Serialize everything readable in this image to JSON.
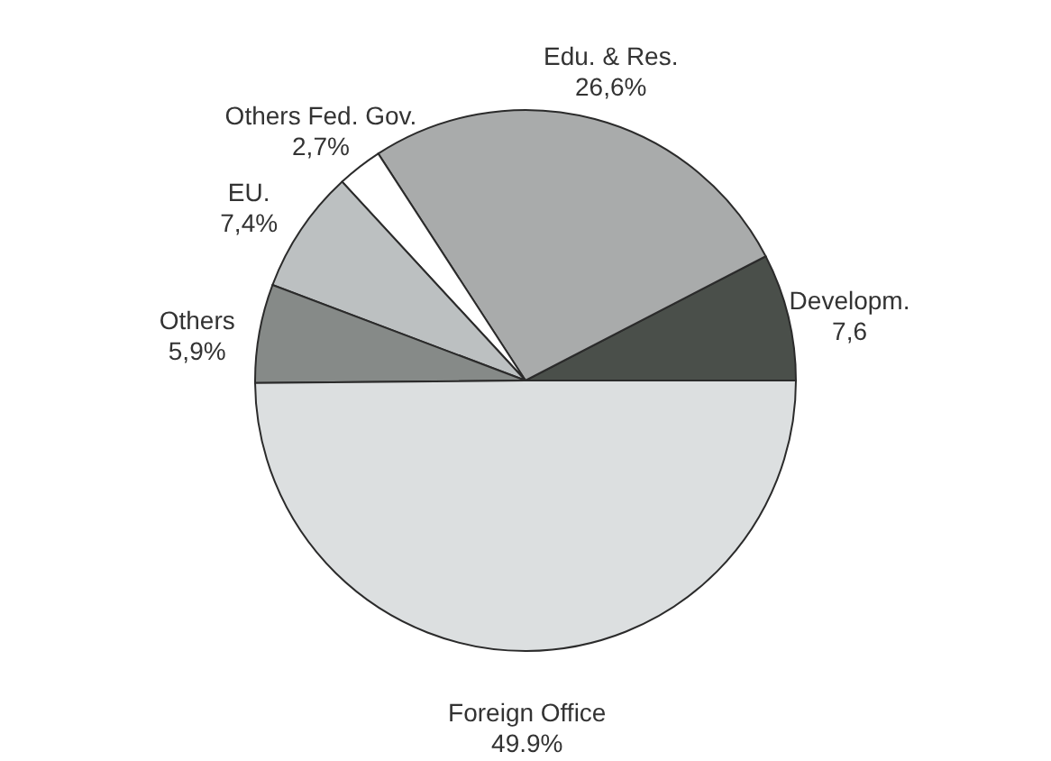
{
  "chart_data": {
    "type": "pie",
    "categories": [
      "Developm.",
      "Edu. & Res.",
      "Others Fed. Gov.",
      "EU.",
      "Others",
      "Foreign Office"
    ],
    "values": [
      7.6,
      26.6,
      2.7,
      7.4,
      5.9,
      49.9
    ],
    "colors": [
      "#4a4f4a",
      "#a9abab",
      "#ffffff",
      "#bcc0c1",
      "#868a88",
      "#dcdfe0"
    ],
    "value_labels": [
      "7,6",
      "26,6%",
      "2,7%",
      "7,4%",
      "5,9%",
      "49.9%"
    ]
  }
}
